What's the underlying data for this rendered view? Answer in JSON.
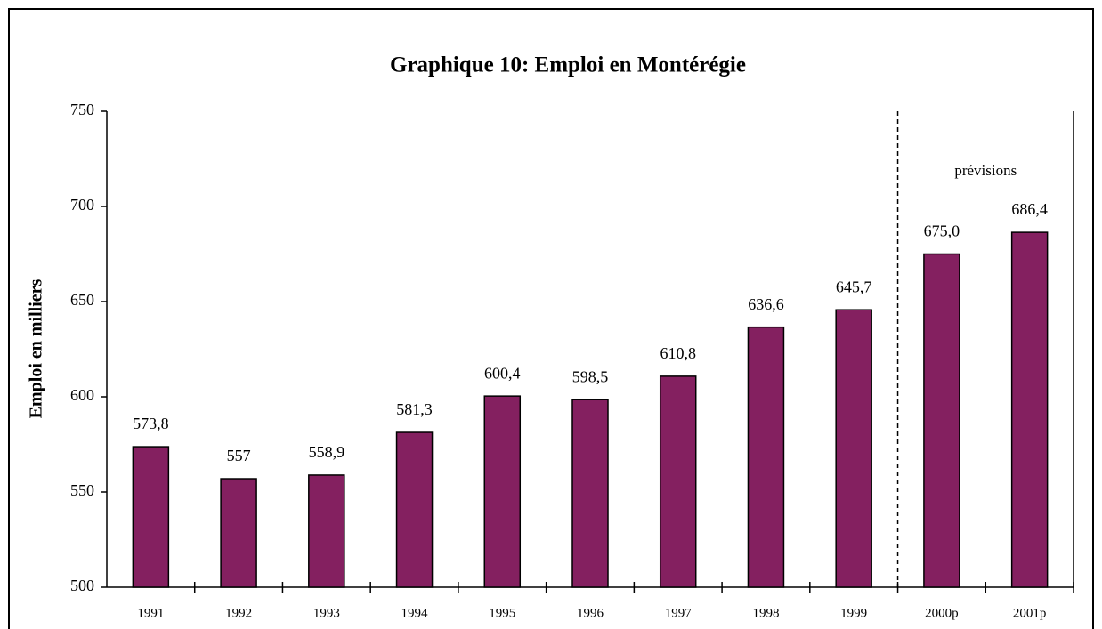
{
  "chart_data": {
    "type": "bar",
    "title": "Graphique 10: Emploi en Montérégie",
    "y_label": "Emploi en milliers",
    "annotation": "prévisions",
    "categories": [
      "1991",
      "1992",
      "1993",
      "1994",
      "1995",
      "1996",
      "1997",
      "1998",
      "1999",
      "2000p",
      "2001p"
    ],
    "values": [
      573.8,
      557,
      558.9,
      581.3,
      600.4,
      598.5,
      610.8,
      636.6,
      645.7,
      675.0,
      686.4
    ],
    "value_labels": [
      "573,8",
      "557",
      "558,9",
      "581,3",
      "600,4",
      "598,5",
      "610,8",
      "636,6",
      "645,7",
      "675,0",
      "686,4"
    ],
    "color": "#842060",
    "ylim": [
      500,
      750
    ],
    "yticks": [
      500,
      550,
      600,
      650,
      700,
      750
    ],
    "grid": false
  }
}
